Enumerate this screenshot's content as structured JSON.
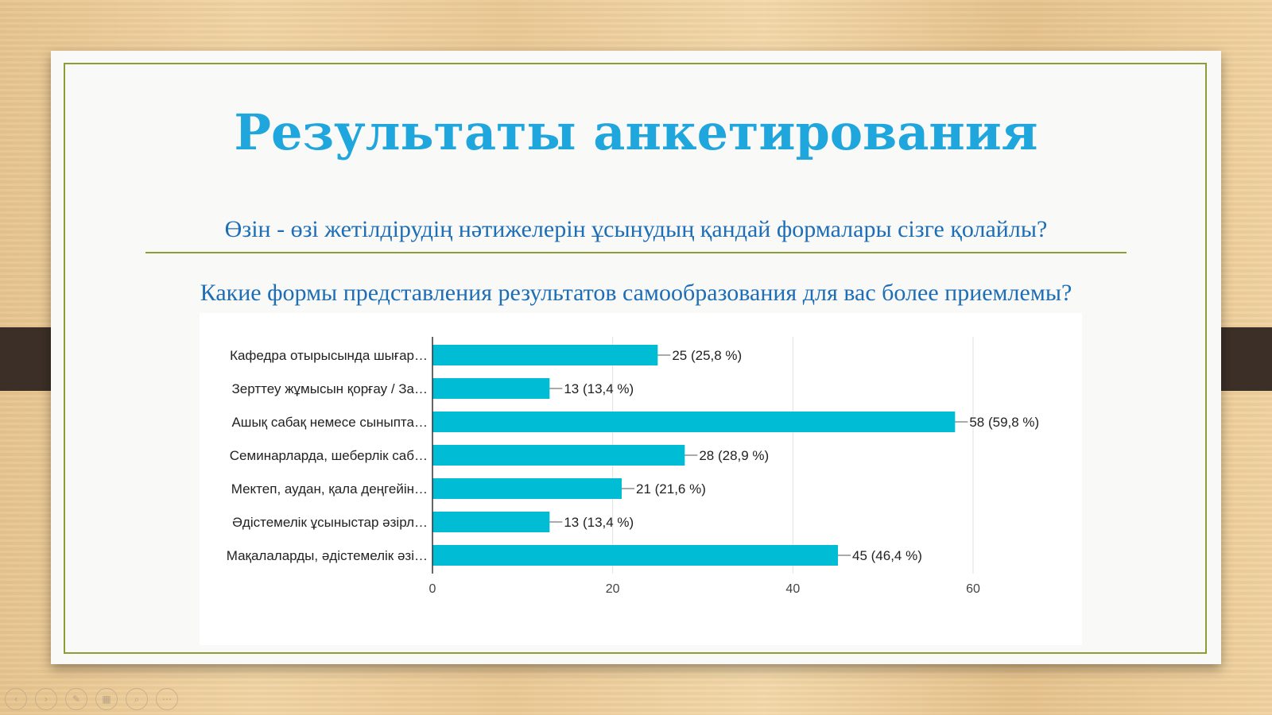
{
  "slide": {
    "title": "Результаты анкетирования",
    "subtitle_kz": "Өзін - өзі жетілдірудің нәтижелерін ұсынудың қандай формалары сізге қолайлы?",
    "subtitle_ru": "Какие формы представления результатов самообразования для вас более приемлемы?"
  },
  "nav": {
    "icons": [
      "prev-icon",
      "next-icon",
      "pen-icon",
      "slides-icon",
      "zoom-icon",
      "more-icon"
    ],
    "glyphs": [
      "‹",
      "›",
      "✎",
      "▦",
      "⌕",
      "⋯"
    ]
  },
  "colors": {
    "bar": "#00bcd4",
    "title": "#1fa6dd",
    "subtitle": "#1d6eb7",
    "frame": "#8c9d35"
  },
  "chart_data": {
    "type": "bar",
    "orientation": "horizontal",
    "categories": [
      "Кафедра отырысында шығар…",
      "Зерттеу жұмысын қорғау / За…",
      "Ашық сабақ немесе сыныпта…",
      "Семинарларда, шеберлік саб…",
      "Мектеп, аудан, қала деңгейін…",
      "Әдістемелік ұсыныстар әзірл…",
      "Мақалаларды, әдістемелік әзі…"
    ],
    "values": [
      25,
      13,
      58,
      28,
      21,
      13,
      45
    ],
    "data_labels": [
      "25 (25,8 %)",
      "13 (13,4 %)",
      "58 (59,8 %)",
      "28 (28,9 %)",
      "21 (21,6 %)",
      "13 (13,4 %)",
      "45 (46,4 %)"
    ],
    "xlim": [
      0,
      60
    ],
    "xticks": [
      0,
      20,
      40,
      60
    ],
    "grid": true,
    "legend": "none"
  }
}
